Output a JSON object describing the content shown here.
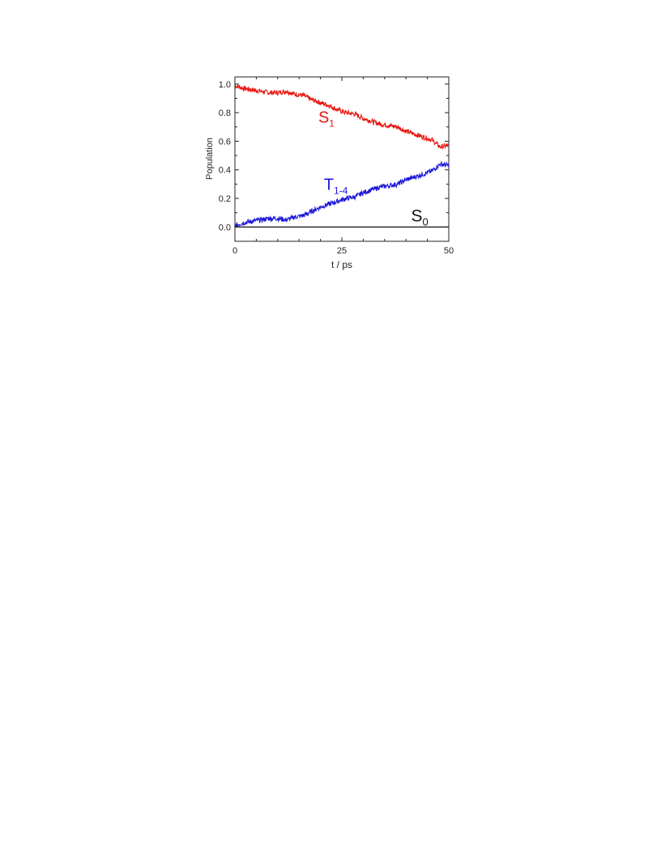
{
  "chart_data": {
    "type": "line",
    "xlabel": "t / ps",
    "ylabel": "Population",
    "xlim": [
      0,
      50
    ],
    "ylim": [
      -0.1,
      1.05
    ],
    "xticks": [
      0,
      25,
      50
    ],
    "yticks": [
      0.0,
      0.2,
      0.4,
      0.6,
      0.8,
      1.0
    ],
    "xtick_labels": [
      "0",
      "25",
      "50"
    ],
    "ytick_labels": [
      "0.0",
      "0.2",
      "0.4",
      "0.6",
      "0.8",
      "1.0"
    ],
    "grid": false,
    "legend": "none",
    "series": [
      {
        "name": "S1",
        "label_main": "S",
        "label_sub": "1",
        "color": "#e8150f",
        "x": [
          0,
          2,
          4,
          6,
          8,
          10,
          12,
          14,
          16,
          18,
          20,
          22,
          24,
          26,
          28,
          30,
          32,
          34,
          36,
          38,
          40,
          42,
          44,
          46,
          48,
          50
        ],
        "y": [
          0.99,
          0.97,
          0.96,
          0.95,
          0.94,
          0.94,
          0.95,
          0.93,
          0.92,
          0.89,
          0.87,
          0.85,
          0.82,
          0.8,
          0.79,
          0.76,
          0.74,
          0.72,
          0.71,
          0.7,
          0.67,
          0.65,
          0.63,
          0.61,
          0.56,
          0.57
        ]
      },
      {
        "name": "T1-4",
        "label_main": "T",
        "label_sub": "1-4",
        "color": "#1a14d8",
        "x": [
          0,
          2,
          4,
          6,
          8,
          10,
          12,
          14,
          16,
          18,
          20,
          22,
          24,
          26,
          28,
          30,
          32,
          34,
          36,
          38,
          40,
          42,
          44,
          46,
          48,
          50
        ],
        "y": [
          0.01,
          0.03,
          0.04,
          0.05,
          0.06,
          0.06,
          0.05,
          0.07,
          0.08,
          0.11,
          0.14,
          0.16,
          0.18,
          0.2,
          0.21,
          0.24,
          0.26,
          0.28,
          0.29,
          0.3,
          0.33,
          0.35,
          0.37,
          0.39,
          0.44,
          0.43
        ]
      },
      {
        "name": "S0",
        "label_main": "S",
        "label_sub": "0",
        "color": "#111111",
        "x": [
          0,
          50
        ],
        "y": [
          0.0,
          0.0
        ]
      }
    ]
  }
}
